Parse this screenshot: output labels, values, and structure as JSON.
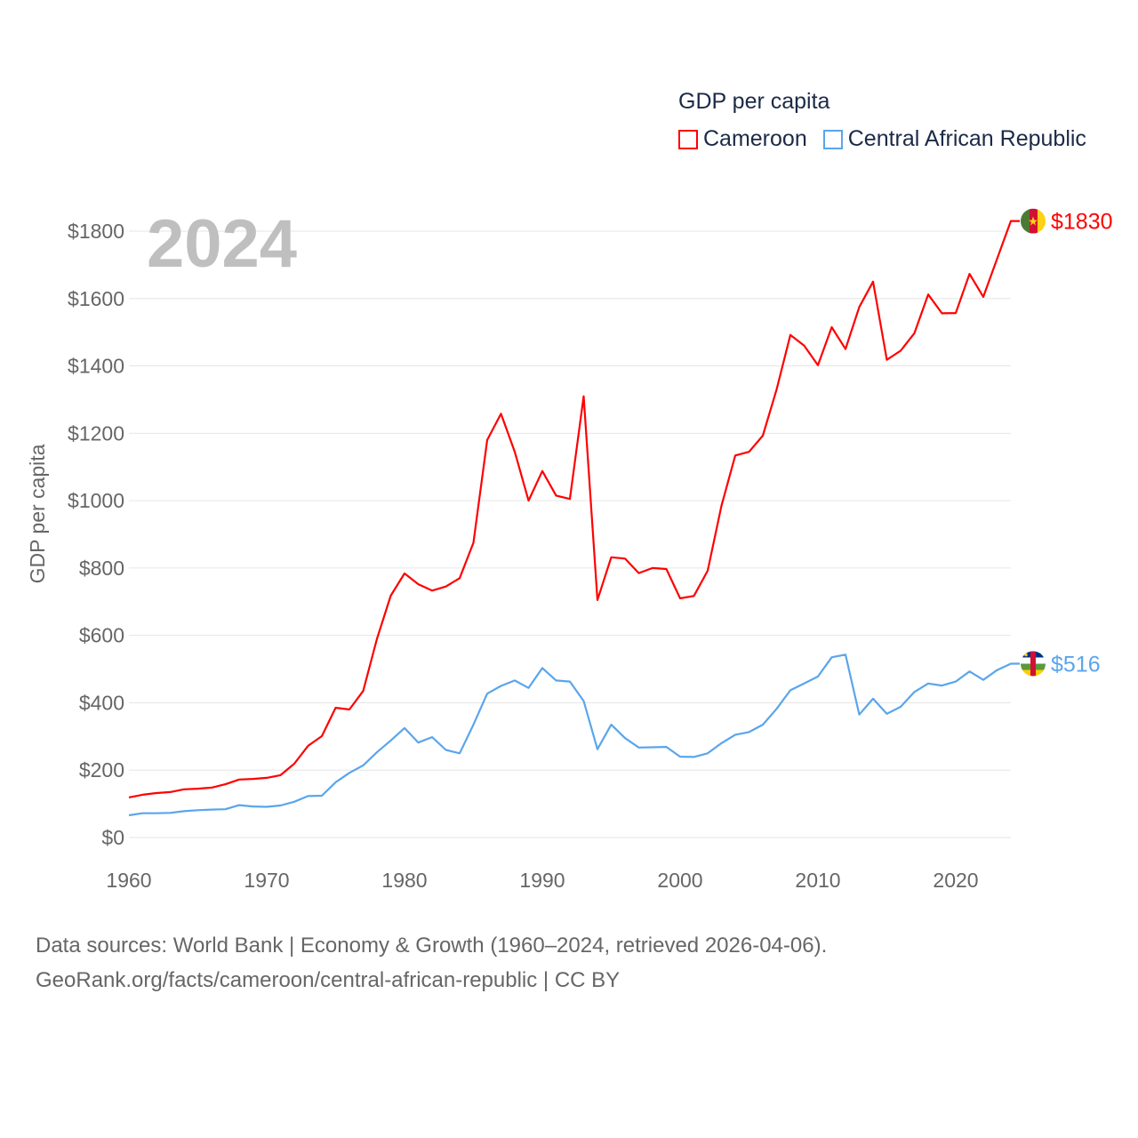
{
  "legend": {
    "title": "GDP per capita"
  },
  "footer": {
    "line1": "Data sources: World Bank | Economy & Growth (1960–2024, retrieved 2026-04-06).",
    "line2": "GeoRank.org/facts/cameroon/central-african-republic | CC BY"
  },
  "chart_data": {
    "type": "line",
    "title": "GDP per capita",
    "year_label": "2024",
    "xlabel": "",
    "ylabel": "GDP per capita",
    "xlim": [
      1960,
      2024
    ],
    "ylim": [
      0,
      1800
    ],
    "x_ticks": [
      1960,
      1970,
      1980,
      1990,
      2000,
      2010,
      2020
    ],
    "y_ticks": [
      "$0",
      "$200",
      "$400",
      "$600",
      "$800",
      "$1000",
      "$1200",
      "$1400",
      "$1600",
      "$1800"
    ],
    "y_tick_values": [
      0,
      200,
      400,
      600,
      800,
      1000,
      1200,
      1400,
      1600,
      1800
    ],
    "grid": true,
    "legend_position": "top-right",
    "x": [
      1960,
      1961,
      1962,
      1963,
      1964,
      1965,
      1966,
      1967,
      1968,
      1969,
      1970,
      1971,
      1972,
      1973,
      1974,
      1975,
      1976,
      1977,
      1978,
      1979,
      1980,
      1981,
      1982,
      1983,
      1984,
      1985,
      1986,
      1987,
      1988,
      1989,
      1990,
      1991,
      1992,
      1993,
      1994,
      1995,
      1996,
      1997,
      1998,
      1999,
      2000,
      2001,
      2002,
      2003,
      2004,
      2005,
      2006,
      2007,
      2008,
      2009,
      2010,
      2011,
      2012,
      2013,
      2014,
      2015,
      2016,
      2017,
      2018,
      2019,
      2020,
      2021,
      2022,
      2023,
      2024
    ],
    "series": [
      {
        "name": "Cameroon",
        "color": "#ff0000",
        "end_label": "$1830",
        "flag": "cameroon-flag",
        "values": [
          119,
          127,
          132,
          135,
          143,
          145,
          148,
          158,
          172,
          174,
          177,
          185,
          219,
          272,
          301,
          385,
          380,
          435,
          590,
          718,
          784,
          752,
          733,
          745,
          770,
          875,
          1180,
          1258,
          1145,
          1000,
          1088,
          1015,
          1005,
          1310,
          705,
          832,
          828,
          785,
          800,
          797,
          710,
          717,
          792,
          985,
          1134,
          1145,
          1193,
          1330,
          1492,
          1460,
          1402,
          1515,
          1450,
          1575,
          1650,
          1418,
          1445,
          1497,
          1612,
          1556,
          1557,
          1673,
          1605,
          1718,
          1830
        ]
      },
      {
        "name": "Central African Republic",
        "color": "#5aa5ec",
        "end_label": "$516",
        "flag": "central-african-republic-flag",
        "values": [
          66,
          72,
          72,
          73,
          78,
          81,
          83,
          84,
          96,
          92,
          91,
          95,
          106,
          123,
          124,
          164,
          192,
          214,
          253,
          288,
          325,
          282,
          298,
          260,
          250,
          335,
          427,
          450,
          466,
          444,
          503,
          466,
          463,
          405,
          262,
          335,
          295,
          267,
          268,
          269,
          240,
          239,
          250,
          280,
          305,
          313,
          335,
          382,
          437,
          457,
          478,
          535,
          543,
          365,
          412,
          367,
          388,
          432,
          457,
          451,
          463,
          493,
          468,
          497,
          516
        ]
      }
    ]
  }
}
